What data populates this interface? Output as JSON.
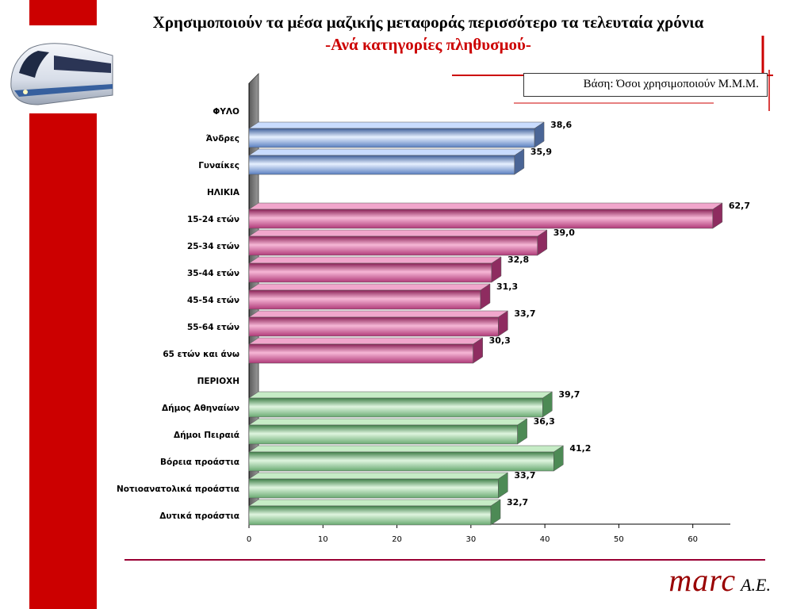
{
  "header": {
    "title": "Χρησιμοποιούν τα μέσα μαζικής μεταφοράς περισσότερο τα τελευταία χρόνια",
    "subtitle": "-Ανά κατηγορίες πληθυσμού-",
    "base_note": "Βάση: Όσοι χρησιμοποιούν Μ.Μ.Μ."
  },
  "logo": {
    "main": "marc",
    "suffix": "Α.Ε."
  },
  "colors": {
    "accent_red": "#cc0000",
    "blue": "#8fb4e8",
    "pink": "#d85c9c",
    "green": "#9fd49f"
  },
  "chart_data": {
    "type": "bar",
    "orientation": "horizontal",
    "xlim": [
      0,
      64
    ],
    "x_ticks": [
      "0",
      "10",
      "20",
      "30",
      "40",
      "50",
      "60"
    ],
    "rows": [
      {
        "label": "ΦΥΛΟ",
        "heading": true
      },
      {
        "label": "Άνδρες",
        "value": 38.6,
        "value_label": "38,6",
        "group": "blue"
      },
      {
        "label": "Γυναίκες",
        "value": 35.9,
        "value_label": "35,9",
        "group": "blue"
      },
      {
        "label": "ΗΛΙΚΙΑ",
        "heading": true
      },
      {
        "label": "15-24 ετών",
        "value": 62.7,
        "value_label": "62,7",
        "group": "pink"
      },
      {
        "label": "25-34 ετών",
        "value": 39.0,
        "value_label": "39,0",
        "group": "pink"
      },
      {
        "label": "35-44 ετών",
        "value": 32.8,
        "value_label": "32,8",
        "group": "pink"
      },
      {
        "label": "45-54 ετών",
        "value": 31.3,
        "value_label": "31,3",
        "group": "pink"
      },
      {
        "label": "55-64 ετών",
        "value": 33.7,
        "value_label": "33,7",
        "group": "pink"
      },
      {
        "label": "65 ετών και άνω",
        "value": 30.3,
        "value_label": "30,3",
        "group": "pink"
      },
      {
        "label": "ΠΕΡΙΟΧΗ",
        "heading": true
      },
      {
        "label": "Δήμος Αθηναίων",
        "value": 39.7,
        "value_label": "39,7",
        "group": "green"
      },
      {
        "label": "Δήμοι Πειραιά",
        "value": 36.3,
        "value_label": "36,3",
        "group": "green"
      },
      {
        "label": "Βόρεια προάστια",
        "value": 41.2,
        "value_label": "41,2",
        "group": "green"
      },
      {
        "label": "Νοτιοανατολικά προάστια",
        "value": 33.7,
        "value_label": "33,7",
        "group": "green"
      },
      {
        "label": "Δυτικά προάστια",
        "value": 32.7,
        "value_label": "32,7",
        "group": "green"
      }
    ]
  }
}
